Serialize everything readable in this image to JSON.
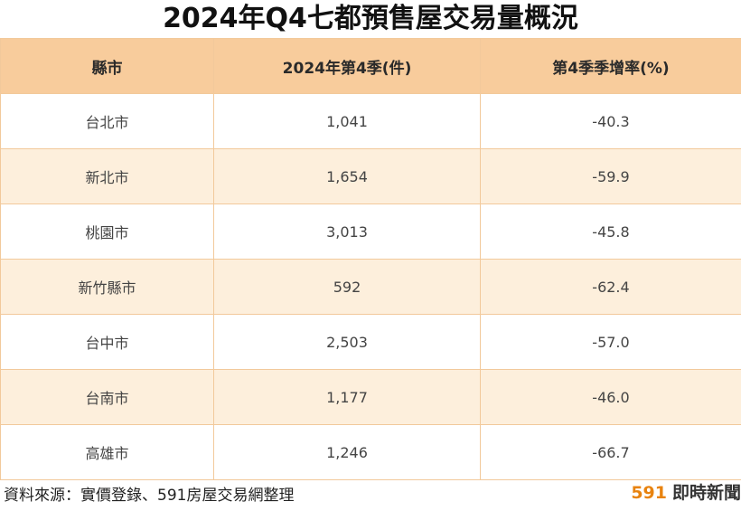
{
  "title": "2024年Q4七都預售屋交易量概況",
  "chart_data": {
    "type": "table",
    "columns": [
      "縣市",
      "2024年第4季(件)",
      "第4季季增率(%)"
    ],
    "rows": [
      [
        "台北市",
        "1,041",
        "-40.3"
      ],
      [
        "新北市",
        "1,654",
        "-59.9"
      ],
      [
        "桃園市",
        "3,013",
        "-45.8"
      ],
      [
        "新竹縣市",
        "592",
        "-62.4"
      ],
      [
        "台中市",
        "2,503",
        "-57.0"
      ],
      [
        "台南市",
        "1,177",
        "-46.0"
      ],
      [
        "高雄市",
        "1,246",
        "-66.7"
      ]
    ]
  },
  "footer": {
    "source": "資料來源：實價登錄、591房屋交易網整理",
    "brand_number": "591",
    "brand_text": "即時新聞"
  },
  "colors": {
    "header_bg": "#f8cc9c",
    "stripe_bg": "#fdefdc",
    "border": "#f2c99b",
    "brand_accent": "#e8830f"
  }
}
